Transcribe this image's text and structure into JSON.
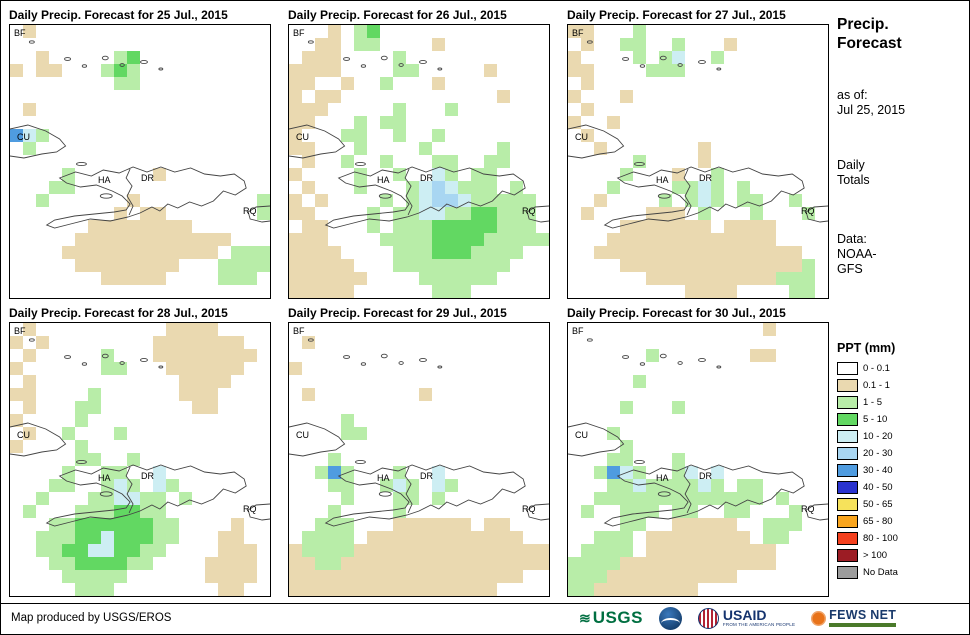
{
  "palette": {
    ".": "#ffffff",
    "t": "#ead9b0",
    "g": "#b8eda8",
    "G": "#62d862",
    "c": "#cdeef3",
    "b": "#a8d6f2",
    "B": "#4f9ce0",
    "N": "#2a33cf"
  },
  "map_labels": {
    "bf": "BF",
    "cu": "CU",
    "ha": "HA",
    "dr": "DR",
    "rq": "RQ"
  },
  "panels": [
    {
      "title": "Daily Precip. Forecast for 25 Jul., 2015",
      "grid": [
        ".t..................",
        "....................",
        "..t.....gG..........",
        "t.tt...gGg..........",
        "........gg..........",
        "....................",
        ".t..................",
        "....................",
        "Bcg.................",
        ".g..................",
        "....................",
        "....g......t........",
        "...gg...............",
        "..g......t.........g",
        "........t.tt.......g",
        "......tttttttt......",
        ".....tttttttttttt...",
        "....tttttttttttt.ggg",
        ".....tttttttt...gggg",
        ".......ttttt....ggg.",
        "...................."
      ]
    },
    {
      "title": "Daily Precip. Forecast for 26 Jul., 2015",
      "grid": [
        "...t.gG.............",
        "..tt.gg....t........",
        ".ttt....g...........",
        "tttt....gg.....t....",
        "tt..t..g...t........",
        "t.tt............t...",
        "ttt.....g...g.......",
        "tt...g.gg...........",
        "t...gg..g..g........",
        "tt...g....g.....g...",
        ".t..g..g...gg..gg...",
        "t....g..g..cg.gg....",
        ".t...g...gcbcggg.g..",
        "t.t....g.gcbbcggggg.",
        "tt....g.ggccggGGggg.",
        ".tt...g.gggGGGGGggg.",
        "ttt....ggggGGGGggggg",
        "tttt....gggGGGgggg..",
        "ttttt...ggggggggg...",
        "tttttt....gggggg....",
        "ttttt......ggg......"
      ]
    },
    {
      "title": "Daily Precip. Forecast for 27 Jul., 2015",
      "grid": [
        "tt...g..............",
        ".t..gg..g...t.......",
        "t....g.gc..g........",
        "tt....ggg...........",
        ".t..................",
        "t...t...............",
        ".t..................",
        "t..t................",
        ".t..................",
        "..t.......t.........",
        ".....g....t.........",
        "....g...t..g........",
        "...g....ggcg.g......",
        "..t....g.gcg.gg..g..",
        ".t....ttt.g...g...g.",
        "....ttttttt.tttt....",
        "...ttttttttttttt....",
        "..tttttttttttttttt..",
        "....ttttttttttttttg.",
        "......ttttttttttggg.",
        ".........tttt....gg."
      ]
    },
    {
      "title": "Daily Precip. Forecast for 28 Jul., 2015",
      "grid": [
        ".t..........tttt....",
        "t.t........ttttttt..",
        ".t.....g...tttttttt.",
        "t......gg...tttttt..",
        ".t...........tttt...",
        "tt....g......ttt....",
        ".t...gg.......tt....",
        "t....g..............",
        ".t..g...g...........",
        "t....g..............",
        ".....gg..g..........",
        "....g..gg..c........",
        "...gg..gcg.cg.......",
        "..g...ggccgg.g......",
        ".g...gggGGgg........",
        "...ggGGGGGGgg....t..",
        "..gggGGcGGGgg...tt..",
        "..ggGGccGGgg....ttt.",
        "...ggGGGGgg....tttt.",
        "....ggggg......tttt.",
        ".....ggg........tt.."
      ]
    },
    {
      "title": "Daily Precip. Forecast for 29 Jul., 2015",
      "grid": [
        "....................",
        ".t..................",
        "....................",
        "t...................",
        "....................",
        ".t........t.........",
        "....................",
        "....g...............",
        "....gg..............",
        "....................",
        "...g................",
        "..gBg...g..c........",
        "...gg..gcg.cg.......",
        "....g...gg.g........",
        "...g....g...........",
        "..ggg...tttttt.tt...",
        ".gggg.tttttttttttt..",
        "tggggttttttttttttttt",
        "ttggtttttttttttttttt",
        "tttttttttttttttttt..",
        "tttttttttttttttt...."
      ]
    },
    {
      "title": "Daily Precip. Forecast for 30 Jul., 2015",
      "grid": [
        "...............t....",
        "....................",
        "......g.......tt....",
        "....................",
        ".....g..............",
        "....................",
        "....g...g...........",
        "....................",
        "...g................",
        "....g...............",
        "...gg...g...........",
        "..gBcg..gc.c........",
        "...ggcggggcg.gg.....",
        "..ggggggggggggg.g...",
        ".g..ggg.gg..gg...g..",
        "....gg..ttttt..ggg..",
        "..ggg.tttttttt.gg...",
        ".gggg.tttttttttt....",
        "ggggtttttttttttt....",
        "gggtttttttttt.......",
        "ggtttttttt.........."
      ]
    }
  ],
  "sidebar": {
    "title_line1": "Precip.",
    "title_line2": "Forecast",
    "asof_label": "as of:",
    "asof_value": "Jul 25, 2015",
    "totals_line1": "Daily",
    "totals_line2": "Totals",
    "data_label": "Data:",
    "data_value_line1": "NOAA-",
    "data_value_line2": "GFS"
  },
  "legend": {
    "title": "PPT (mm)",
    "items": [
      {
        "label": "0 - 0.1",
        "color": "#ffffff"
      },
      {
        "label": "0.1 - 1",
        "color": "#ead9b0"
      },
      {
        "label": "1 - 5",
        "color": "#b8eda8"
      },
      {
        "label": "5 - 10",
        "color": "#62d862"
      },
      {
        "label": "10 - 20",
        "color": "#cdeef3"
      },
      {
        "label": "20 - 30",
        "color": "#a8d6f2"
      },
      {
        "label": "30 - 40",
        "color": "#4f9ce0"
      },
      {
        "label": "40 - 50",
        "color": "#2a33cf"
      },
      {
        "label": "50 - 65",
        "color": "#f6e25b"
      },
      {
        "label": "65 - 80",
        "color": "#f9a51e"
      },
      {
        "label": "80 - 100",
        "color": "#f4401e"
      },
      {
        "label": "> 100",
        "color": "#9c1c24"
      },
      {
        "label": "No Data",
        "color": "#9c9c9c"
      }
    ]
  },
  "footer": {
    "attribution": "Map produced by USGS/EROS",
    "logos": [
      {
        "name": "USGS"
      },
      {
        "name": "NOAA"
      },
      {
        "name": "USAID",
        "caption": "FROM THE AMERICAN PEOPLE"
      },
      {
        "name": "FEWS NET"
      }
    ]
  }
}
